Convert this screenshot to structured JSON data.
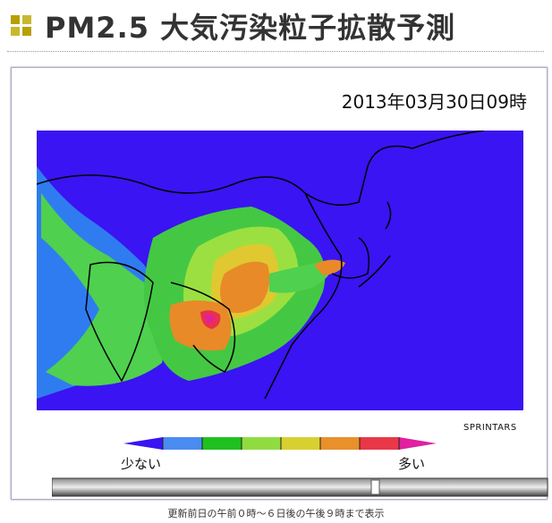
{
  "header": {
    "title": "PM2.5 大気汚染粒子拡散予測"
  },
  "panel": {
    "timestamp": "2013年03月30日09時",
    "credit": "SPRINTARS"
  },
  "legend": {
    "low_label": "少ない",
    "high_label": "多い"
  },
  "footer": {
    "note": "更新前日の午前０時～６日後の午後９時まで表示"
  }
}
